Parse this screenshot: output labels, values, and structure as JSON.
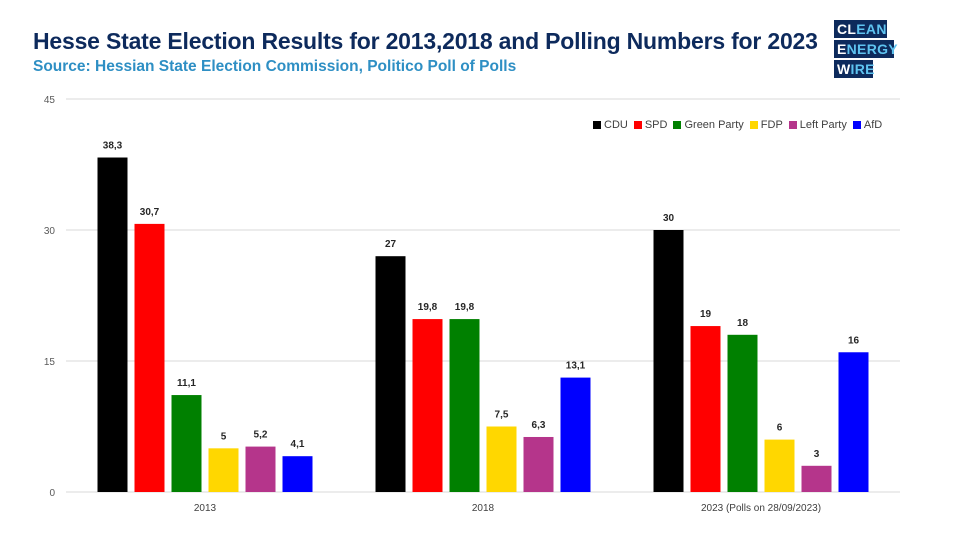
{
  "header": {
    "title": "Hesse State Election Results for 2013,2018 and Polling Numbers for 2023",
    "subtitle": "Source: Hessian State Election Commission, Politico Poll of Polls"
  },
  "logo": {
    "lines": [
      {
        "white": "CL",
        "blue": "EAN"
      },
      {
        "white": "E",
        "blue": "NERGY"
      },
      {
        "white": "W",
        "blue": "IRE"
      }
    ],
    "bg_color": "#0d2a5c",
    "accent_color": "#5ec3f0"
  },
  "chart_data": {
    "type": "bar",
    "title": "Hesse State Election Results for 2013,2018 and Polling Numbers for 2023",
    "subtitle": "Source: Hessian State Election Commission, Politico Poll of Polls",
    "xlabel": "",
    "ylabel": "",
    "ylim": [
      0,
      45
    ],
    "yticks": [
      0,
      15,
      30,
      45
    ],
    "grid": true,
    "legend_position": "top-right",
    "categories": [
      "2013",
      "2018",
      "2023 (Polls on 28/09/2023)"
    ],
    "series": [
      {
        "name": "CDU",
        "color": "#000000",
        "values": [
          38.3,
          27,
          30
        ],
        "labels": [
          "38,3",
          "27",
          "30"
        ]
      },
      {
        "name": "SPD",
        "color": "#ff0000",
        "values": [
          30.7,
          19.8,
          19
        ],
        "labels": [
          "30,7",
          "19,8",
          "19"
        ]
      },
      {
        "name": "Green Party",
        "color": "#008000",
        "values": [
          11.1,
          19.8,
          18
        ],
        "labels": [
          "11,1",
          "19,8",
          "18"
        ]
      },
      {
        "name": "FDP",
        "color": "#ffd700",
        "values": [
          5,
          7.5,
          6
        ],
        "labels": [
          "5",
          "7,5",
          "6"
        ]
      },
      {
        "name": "Left Party",
        "color": "#b5358b",
        "values": [
          5.2,
          6.3,
          3
        ],
        "labels": [
          "5,2",
          "6,3",
          "3"
        ]
      },
      {
        "name": "AfD",
        "color": "#0000ff",
        "values": [
          4.1,
          13.1,
          16
        ],
        "labels": [
          "4,1",
          "13,1",
          "16"
        ]
      }
    ]
  }
}
